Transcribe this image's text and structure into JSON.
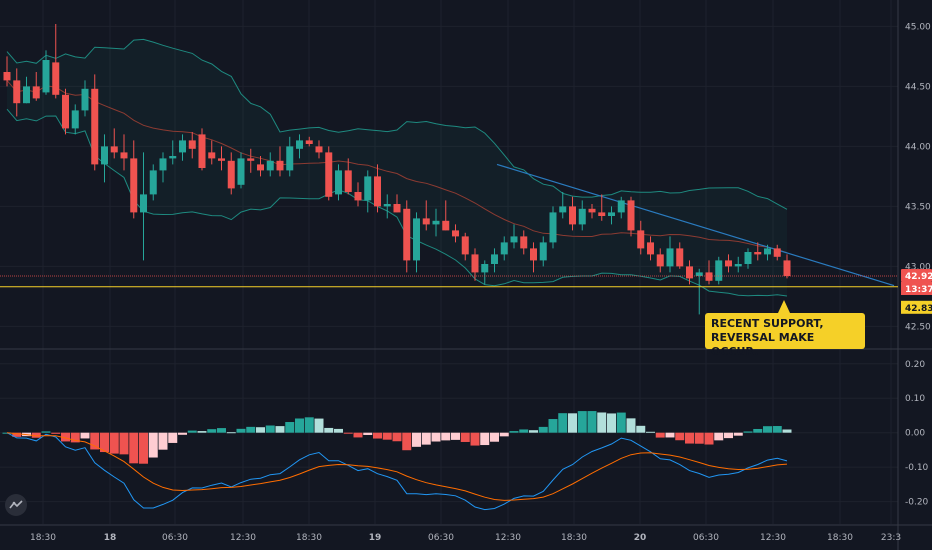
{
  "chart_data": [
    {
      "type": "candlestick",
      "title": "",
      "price_levels": {
        "current": 42.92,
        "timer": "13:37",
        "support": 42.83
      },
      "y_ticks": [
        45.0,
        44.5,
        44.0,
        43.5,
        43.0,
        42.5
      ],
      "ylim": [
        42.32,
        45.22
      ],
      "x_ticks": [
        "18:30",
        "18",
        "06:30",
        "12:30",
        "18:30",
        "19",
        "06:30",
        "12:30",
        "18:30",
        "20",
        "06:30",
        "12:30",
        "18:30",
        "23:3"
      ],
      "x_ticks_bold": [
        false,
        true,
        false,
        false,
        false,
        true,
        false,
        false,
        false,
        true,
        false,
        false,
        false,
        false
      ],
      "candles": [
        [
          44.62,
          44.75,
          44.5,
          44.55
        ],
        [
          44.55,
          44.65,
          44.25,
          44.36
        ],
        [
          44.36,
          44.58,
          44.36,
          44.5
        ],
        [
          44.5,
          44.62,
          44.38,
          44.4
        ],
        [
          44.45,
          44.8,
          44.43,
          44.72
        ],
        [
          44.7,
          45.02,
          44.4,
          44.43
        ],
        [
          44.43,
          44.48,
          44.1,
          44.15
        ],
        [
          44.15,
          44.35,
          44.1,
          44.3
        ],
        [
          44.3,
          44.55,
          44.25,
          44.48
        ],
        [
          44.48,
          44.6,
          43.8,
          43.85
        ],
        [
          43.85,
          44.1,
          43.7,
          44.0
        ],
        [
          44.0,
          44.15,
          43.9,
          43.95
        ],
        [
          43.95,
          44.1,
          43.8,
          43.9
        ],
        [
          43.9,
          44.05,
          43.4,
          43.45
        ],
        [
          43.45,
          43.95,
          43.05,
          43.6
        ],
        [
          43.6,
          43.85,
          43.55,
          43.8
        ],
        [
          43.8,
          43.95,
          43.7,
          43.9
        ],
        [
          43.9,
          44.05,
          43.85,
          43.92
        ],
        [
          43.95,
          44.1,
          43.88,
          44.05
        ],
        [
          44.05,
          44.12,
          43.9,
          43.98
        ],
        [
          44.1,
          44.15,
          43.8,
          43.82
        ],
        [
          43.95,
          44.05,
          43.85,
          43.9
        ],
        [
          43.9,
          44.0,
          43.8,
          43.88
        ],
        [
          43.88,
          43.95,
          43.6,
          43.65
        ],
        [
          43.68,
          43.95,
          43.65,
          43.9
        ],
        [
          43.9,
          43.98,
          43.78,
          43.88
        ],
        [
          43.85,
          43.92,
          43.75,
          43.8
        ],
        [
          43.8,
          43.95,
          43.75,
          43.88
        ],
        [
          43.88,
          44.0,
          43.75,
          43.8
        ],
        [
          43.8,
          44.08,
          43.75,
          44.0
        ],
        [
          43.98,
          44.1,
          43.9,
          44.05
        ],
        [
          44.05,
          44.08,
          44.0,
          44.02
        ],
        [
          44.0,
          44.05,
          43.9,
          43.95
        ],
        [
          43.95,
          44.0,
          43.55,
          43.58
        ],
        [
          43.6,
          43.85,
          43.55,
          43.8
        ],
        [
          43.8,
          43.9,
          43.6,
          43.62
        ],
        [
          43.62,
          43.7,
          43.5,
          43.55
        ],
        [
          43.55,
          43.8,
          43.45,
          43.75
        ],
        [
          43.75,
          43.85,
          43.45,
          43.5
        ],
        [
          43.5,
          43.6,
          43.4,
          43.52
        ],
        [
          43.52,
          43.6,
          43.45,
          43.45
        ],
        [
          43.48,
          43.55,
          42.95,
          43.05
        ],
        [
          43.05,
          43.45,
          42.95,
          43.4
        ],
        [
          43.4,
          43.55,
          43.3,
          43.35
        ],
        [
          43.35,
          43.48,
          43.25,
          43.38
        ],
        [
          43.38,
          43.55,
          43.3,
          43.3
        ],
        [
          43.3,
          43.35,
          43.2,
          43.25
        ],
        [
          43.25,
          43.28,
          43.05,
          43.1
        ],
        [
          43.1,
          43.15,
          42.88,
          42.95
        ],
        [
          42.95,
          43.05,
          42.85,
          43.02
        ],
        [
          43.02,
          43.15,
          42.95,
          43.1
        ],
        [
          43.1,
          43.25,
          43.05,
          43.2
        ],
        [
          43.2,
          43.35,
          43.15,
          43.25
        ],
        [
          43.25,
          43.3,
          43.1,
          43.15
        ],
        [
          43.15,
          43.2,
          42.95,
          43.05
        ],
        [
          43.05,
          43.25,
          43.0,
          43.2
        ],
        [
          43.2,
          43.5,
          43.15,
          43.45
        ],
        [
          43.45,
          43.62,
          43.4,
          43.5
        ],
        [
          43.5,
          43.58,
          43.3,
          43.35
        ],
        [
          43.35,
          43.55,
          43.3,
          43.48
        ],
        [
          43.48,
          43.52,
          43.4,
          43.45
        ],
        [
          43.45,
          43.6,
          43.38,
          43.42
        ],
        [
          43.42,
          43.5,
          43.35,
          43.45
        ],
        [
          43.45,
          43.58,
          43.4,
          43.55
        ],
        [
          43.55,
          43.58,
          43.25,
          43.3
        ],
        [
          43.3,
          43.38,
          43.1,
          43.15
        ],
        [
          43.2,
          43.25,
          43.05,
          43.1
        ],
        [
          43.1,
          43.15,
          42.95,
          43.0
        ],
        [
          43.0,
          43.25,
          42.95,
          43.15
        ],
        [
          43.15,
          43.2,
          42.98,
          43.0
        ],
        [
          43.0,
          43.05,
          42.85,
          42.9
        ],
        [
          42.92,
          42.98,
          42.6,
          42.95
        ],
        [
          42.95,
          43.05,
          42.85,
          42.88
        ],
        [
          42.88,
          43.08,
          42.85,
          43.05
        ],
        [
          43.05,
          43.1,
          42.95,
          43.0
        ],
        [
          43.0,
          43.08,
          42.95,
          43.02
        ],
        [
          43.02,
          43.15,
          42.98,
          43.12
        ],
        [
          43.12,
          43.2,
          43.05,
          43.1
        ],
        [
          43.1,
          43.18,
          43.05,
          43.15
        ],
        [
          43.15,
          43.18,
          43.05,
          43.08
        ],
        [
          43.05,
          43.1,
          42.9,
          42.92
        ]
      ],
      "annotations": [
        "RECENT SUPPORT,",
        "REVERSAL MAKE OCCUR."
      ]
    },
    {
      "type": "macd",
      "y_ticks": [
        0.2,
        0.1,
        0.0,
        -0.1,
        -0.2
      ],
      "ylim": [
        -0.265,
        0.24
      ]
    }
  ],
  "colors": {
    "background": "#131722",
    "up": "#26a69a",
    "down": "#ef5350",
    "support_line": "#f5d028",
    "trend_line": "#2a7bbf",
    "bollinger": "#1e8a80",
    "macd_line": "#2196f3",
    "signal_line": "#ff6d00",
    "price_tag": "#ef5350",
    "callout": "#f5d028"
  }
}
